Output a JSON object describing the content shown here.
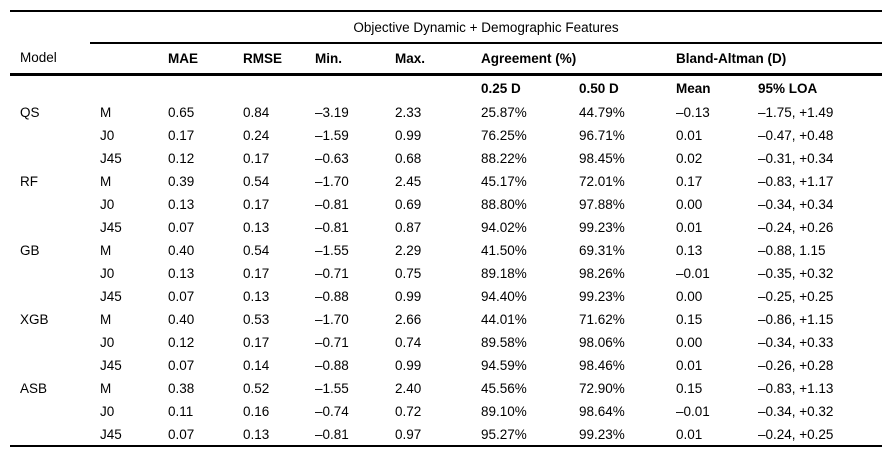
{
  "table": {
    "spanner_title": "Objective Dynamic + Demographic Features",
    "header": {
      "model": "Model",
      "mae": "MAE",
      "rmse": "RMSE",
      "min": "Min.",
      "max": "Max.",
      "agreement_group": "Agreement (%)",
      "bland_altman_group": "Bland-Altman (D)",
      "agree_025": "0.25 D",
      "agree_050": "0.50 D",
      "ba_mean": "Mean",
      "ba_loa": "95% LOA"
    },
    "rows": [
      {
        "model": "QS",
        "component": "M",
        "mae": "0.65",
        "rmse": "0.84",
        "min": "–3.19",
        "max": "2.33",
        "agree_025": "25.87%",
        "agree_050": "44.79%",
        "ba_mean": "–0.13",
        "ba_loa": "–1.75, +1.49"
      },
      {
        "model": "",
        "component": "J0",
        "mae": "0.17",
        "rmse": "0.24",
        "min": "–1.59",
        "max": "0.99",
        "agree_025": "76.25%",
        "agree_050": "96.71%",
        "ba_mean": "0.01",
        "ba_loa": "–0.47, +0.48"
      },
      {
        "model": "",
        "component": "J45",
        "mae": "0.12",
        "rmse": "0.17",
        "min": "–0.63",
        "max": "0.68",
        "agree_025": "88.22%",
        "agree_050": "98.45%",
        "ba_mean": "0.02",
        "ba_loa": "–0.31, +0.34"
      },
      {
        "model": "RF",
        "component": "M",
        "mae": "0.39",
        "rmse": "0.54",
        "min": "–1.70",
        "max": "2.45",
        "agree_025": "45.17%",
        "agree_050": "72.01%",
        "ba_mean": "0.17",
        "ba_loa": "–0.83, +1.17"
      },
      {
        "model": "",
        "component": "J0",
        "mae": "0.13",
        "rmse": "0.17",
        "min": "–0.81",
        "max": "0.69",
        "agree_025": "88.80%",
        "agree_050": "97.88%",
        "ba_mean": "0.00",
        "ba_loa": "–0.34, +0.34"
      },
      {
        "model": "",
        "component": "J45",
        "mae": "0.07",
        "rmse": "0.13",
        "min": "–0.81",
        "max": "0.87",
        "agree_025": "94.02%",
        "agree_050": "99.23%",
        "ba_mean": "0.01",
        "ba_loa": "–0.24, +0.26"
      },
      {
        "model": "GB",
        "component": "M",
        "mae": "0.40",
        "rmse": "0.54",
        "min": "–1.55",
        "max": "2.29",
        "agree_025": "41.50%",
        "agree_050": "69.31%",
        "ba_mean": "0.13",
        "ba_loa": "–0.88, 1.15"
      },
      {
        "model": "",
        "component": "J0",
        "mae": "0.13",
        "rmse": "0.17",
        "min": "–0.71",
        "max": "0.75",
        "agree_025": "89.18%",
        "agree_050": "98.26%",
        "ba_mean": "–0.01",
        "ba_loa": "–0.35, +0.32"
      },
      {
        "model": "",
        "component": "J45",
        "mae": "0.07",
        "rmse": "0.13",
        "min": "–0.88",
        "max": "0.99",
        "agree_025": "94.40%",
        "agree_050": "99.23%",
        "ba_mean": "0.00",
        "ba_loa": "–0.25, +0.25"
      },
      {
        "model": "XGB",
        "component": "M",
        "mae": "0.40",
        "rmse": "0.53",
        "min": "–1.70",
        "max": "2.66",
        "agree_025": "44.01%",
        "agree_050": "71.62%",
        "ba_mean": "0.15",
        "ba_loa": "–0.86, +1.15"
      },
      {
        "model": "",
        "component": "J0",
        "mae": "0.12",
        "rmse": "0.17",
        "min": "–0.71",
        "max": "0.74",
        "agree_025": "89.58%",
        "agree_050": "98.06%",
        "ba_mean": "0.00",
        "ba_loa": "–0.34, +0.33"
      },
      {
        "model": "",
        "component": "J45",
        "mae": "0.07",
        "rmse": "0.14",
        "min": "–0.88",
        "max": "0.99",
        "agree_025": "94.59%",
        "agree_050": "98.46%",
        "ba_mean": "0.01",
        "ba_loa": "–0.26, +0.28"
      },
      {
        "model": "ASB",
        "component": "M",
        "mae": "0.38",
        "rmse": "0.52",
        "min": "–1.55",
        "max": "2.40",
        "agree_025": "45.56%",
        "agree_050": "72.90%",
        "ba_mean": "0.15",
        "ba_loa": "–0.83, +1.13"
      },
      {
        "model": "",
        "component": "J0",
        "mae": "0.11",
        "rmse": "0.16",
        "min": "–0.74",
        "max": "0.72",
        "agree_025": "89.10%",
        "agree_050": "98.64%",
        "ba_mean": "–0.01",
        "ba_loa": "–0.34, +0.32"
      },
      {
        "model": "",
        "component": "J45",
        "mae": "0.07",
        "rmse": "0.13",
        "min": "–0.81",
        "max": "0.97",
        "agree_025": "95.27%",
        "agree_050": "99.23%",
        "ba_mean": "0.01",
        "ba_loa": "–0.24, +0.25"
      }
    ]
  },
  "colors": {
    "text": "#000000",
    "background": "#ffffff",
    "rule": "#000000"
  }
}
